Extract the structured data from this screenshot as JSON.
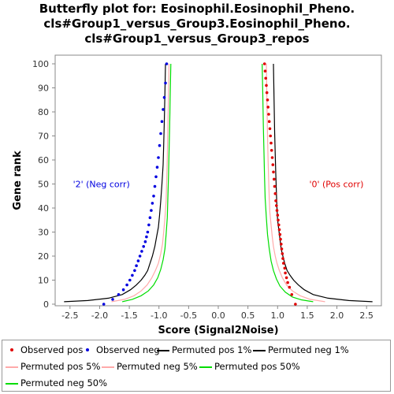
{
  "title_lines": [
    "Butterfly plot for: Eosinophil.Eosinophil_Pheno.",
    "cls#Group1_versus_Group3.Eosinophil_Pheno.",
    "cls#Group1_versus_Group3_repos"
  ],
  "colors": {
    "observed_pos": "#e00000",
    "observed_neg": "#0000e0",
    "perm1": "#000000",
    "perm5": "#ffaaaa",
    "perm50": "#00dd00"
  },
  "chart_data": {
    "type": "scatter",
    "title": "Butterfly plot for: Eosinophil.Eosinophil_Pheno. cls#Group1_versus_Group3.Eosinophil_Pheno. cls#Group1_versus_Group3_repos",
    "xlabel": "Score (Signal2Noise)",
    "ylabel": "Gene rank",
    "xlim": [
      -2.75,
      2.75
    ],
    "ylim": [
      0,
      100
    ],
    "x_ticks": [
      -2.5,
      -2.0,
      -1.5,
      -1.0,
      -0.5,
      0.0,
      0.5,
      1.0,
      1.5,
      2.0,
      2.5
    ],
    "x_tick_labels": [
      "-2.5",
      "-2.0",
      "-1.5",
      "-1.0",
      "-0.5",
      "0.0",
      "0.5",
      "1.0",
      "1.5",
      "2.0",
      "2.5"
    ],
    "y_ticks": [
      0,
      10,
      20,
      30,
      40,
      50,
      60,
      70,
      80,
      90,
      100
    ],
    "y_tick_labels": [
      "0",
      "10",
      "20",
      "30",
      "40",
      "50",
      "60",
      "70",
      "80",
      "90",
      "100"
    ],
    "grid": false,
    "legend_position": "bottom",
    "annotations": [
      {
        "text": "'2' (Neg corr)",
        "x": -2.45,
        "y": 50,
        "color": "#0000e0"
      },
      {
        "text": "'0' (Pos corr)",
        "x": 2.45,
        "y": 50,
        "color": "#e00000"
      }
    ],
    "series": [
      {
        "name": "Observed pos",
        "style": "dots",
        "x": [
          1.3,
          1.24,
          1.2,
          1.17,
          1.15,
          1.13,
          1.12,
          1.1,
          1.09,
          1.08,
          1.07,
          1.06,
          1.05,
          1.04,
          1.03,
          1.02,
          1.01,
          1.0,
          0.99,
          0.98,
          0.97,
          0.96,
          0.95,
          0.94,
          0.93,
          0.92,
          0.91,
          0.9,
          0.89,
          0.88,
          0.87,
          0.86,
          0.85,
          0.84,
          0.83,
          0.82,
          0.81,
          0.8,
          0.79,
          0.78
        ],
        "y": [
          0,
          4,
          7,
          9,
          11,
          13,
          15,
          17,
          19,
          21,
          23,
          25,
          27,
          29,
          31,
          33,
          35,
          37,
          39,
          41,
          43,
          46,
          49,
          52,
          55,
          58,
          61,
          64,
          67,
          70,
          73,
          76,
          79,
          82,
          85,
          88,
          91,
          94,
          97,
          100
        ]
      },
      {
        "name": "Observed neg",
        "style": "dots",
        "x": [
          -1.93,
          -1.78,
          -1.68,
          -1.6,
          -1.54,
          -1.49,
          -1.45,
          -1.41,
          -1.38,
          -1.35,
          -1.32,
          -1.29,
          -1.26,
          -1.23,
          -1.21,
          -1.19,
          -1.17,
          -1.15,
          -1.13,
          -1.11,
          -1.09,
          -1.07,
          -1.05,
          -1.03,
          -1.01,
          -0.99,
          -0.97,
          -0.95,
          -0.93,
          -0.91,
          -0.89,
          -0.87
        ],
        "y": [
          0,
          2,
          4,
          6,
          8,
          10,
          12,
          14,
          16,
          18,
          20,
          22,
          24,
          26,
          28,
          30,
          33,
          36,
          39,
          42,
          45,
          49,
          53,
          57,
          61,
          66,
          71,
          76,
          81,
          86,
          92,
          100
        ]
      },
      {
        "name": "Permuted pos 1%",
        "style": "line",
        "x": [
          2.6,
          2.2,
          1.85,
          1.6,
          1.45,
          1.35,
          1.27,
          1.21,
          1.16,
          1.12,
          1.09,
          1.06,
          1.04,
          1.02,
          1.0,
          0.99,
          0.98,
          0.97,
          0.96,
          0.95,
          0.94,
          0.93
        ],
        "y": [
          1,
          1.5,
          2.5,
          4,
          6,
          8,
          10,
          12,
          14,
          17,
          20,
          23,
          27,
          31,
          35,
          40,
          46,
          54,
          62,
          72,
          85,
          100
        ]
      },
      {
        "name": "Permuted neg 1%",
        "style": "line",
        "x": [
          -2.6,
          -2.2,
          -1.85,
          -1.62,
          -1.48,
          -1.38,
          -1.3,
          -1.24,
          -1.19,
          -1.15,
          -1.11,
          -1.07,
          -1.04,
          -1.01,
          -0.99,
          -0.97,
          -0.95,
          -0.93,
          -0.92,
          -0.91,
          -0.9,
          -0.89
        ],
        "y": [
          1,
          1.5,
          2.5,
          4,
          6,
          8,
          10,
          12,
          14,
          17,
          20,
          24,
          28,
          32,
          37,
          43,
          50,
          58,
          66,
          76,
          88,
          100
        ]
      },
      {
        "name": "Permuted pos 5%",
        "style": "line",
        "x": [
          1.8,
          1.55,
          1.38,
          1.25,
          1.15,
          1.08,
          1.03,
          0.99,
          0.96,
          0.93,
          0.91,
          0.89,
          0.87,
          0.86,
          0.85,
          0.84,
          0.83,
          0.82,
          0.81
        ],
        "y": [
          1,
          2,
          3.5,
          5.5,
          8,
          11,
          14,
          17,
          20,
          24,
          28,
          33,
          38,
          44,
          51,
          60,
          70,
          85,
          100
        ]
      },
      {
        "name": "Permuted neg 5%",
        "style": "line",
        "x": [
          -1.8,
          -1.58,
          -1.42,
          -1.3,
          -1.2,
          -1.12,
          -1.06,
          -1.01,
          -0.97,
          -0.94,
          -0.92,
          -0.9,
          -0.88,
          -0.87,
          -0.86,
          -0.85,
          -0.84,
          -0.83
        ],
        "y": [
          1,
          2,
          3.5,
          5.5,
          8,
          11,
          14,
          17,
          21,
          25,
          30,
          36,
          43,
          51,
          61,
          73,
          86,
          100
        ]
      },
      {
        "name": "Permuted pos 50%",
        "style": "line",
        "x": [
          1.6,
          1.4,
          1.25,
          1.13,
          1.04,
          0.98,
          0.93,
          0.89,
          0.86,
          0.83,
          0.81,
          0.79,
          0.78,
          0.77,
          0.76,
          0.75,
          0.74
        ],
        "y": [
          1,
          1.8,
          3,
          5,
          7.5,
          10.5,
          14,
          18,
          23,
          29,
          36,
          44,
          53,
          63,
          74,
          87,
          100
        ]
      },
      {
        "name": "Permuted neg 50%",
        "style": "line",
        "x": [
          -1.62,
          -1.45,
          -1.3,
          -1.18,
          -1.09,
          -1.02,
          -0.97,
          -0.93,
          -0.9,
          -0.88,
          -0.86,
          -0.85,
          -0.84,
          -0.83,
          -0.82,
          -0.81,
          -0.8
        ],
        "y": [
          1,
          2,
          3.5,
          5.5,
          8,
          11,
          14.5,
          18.5,
          23,
          29,
          36,
          44,
          53,
          63,
          74,
          87,
          100
        ]
      }
    ]
  }
}
